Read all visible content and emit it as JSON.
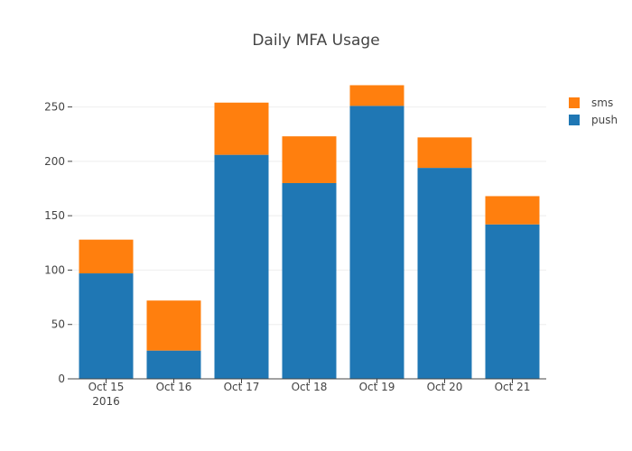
{
  "chart_data": {
    "type": "bar",
    "stacked": true,
    "title": "Daily MFA Usage",
    "xlabel": "",
    "ylabel": "",
    "categories": [
      "Oct 15",
      "Oct 16",
      "Oct 17",
      "Oct 18",
      "Oct 19",
      "Oct 20",
      "Oct 21"
    ],
    "x_year_label": "2016",
    "ylim": [
      0,
      282
    ],
    "yticks": [
      0,
      50,
      100,
      150,
      200,
      250
    ],
    "grid": true,
    "legend_position": "top-right",
    "series": [
      {
        "name": "push",
        "color": "#1f77b4",
        "values": [
          97,
          26,
          206,
          180,
          251,
          194,
          142
        ]
      },
      {
        "name": "sms",
        "color": "#ff7f0e",
        "values": [
          31,
          46,
          48,
          43,
          19,
          28,
          26
        ]
      }
    ],
    "legend_order": [
      "sms",
      "push"
    ]
  }
}
